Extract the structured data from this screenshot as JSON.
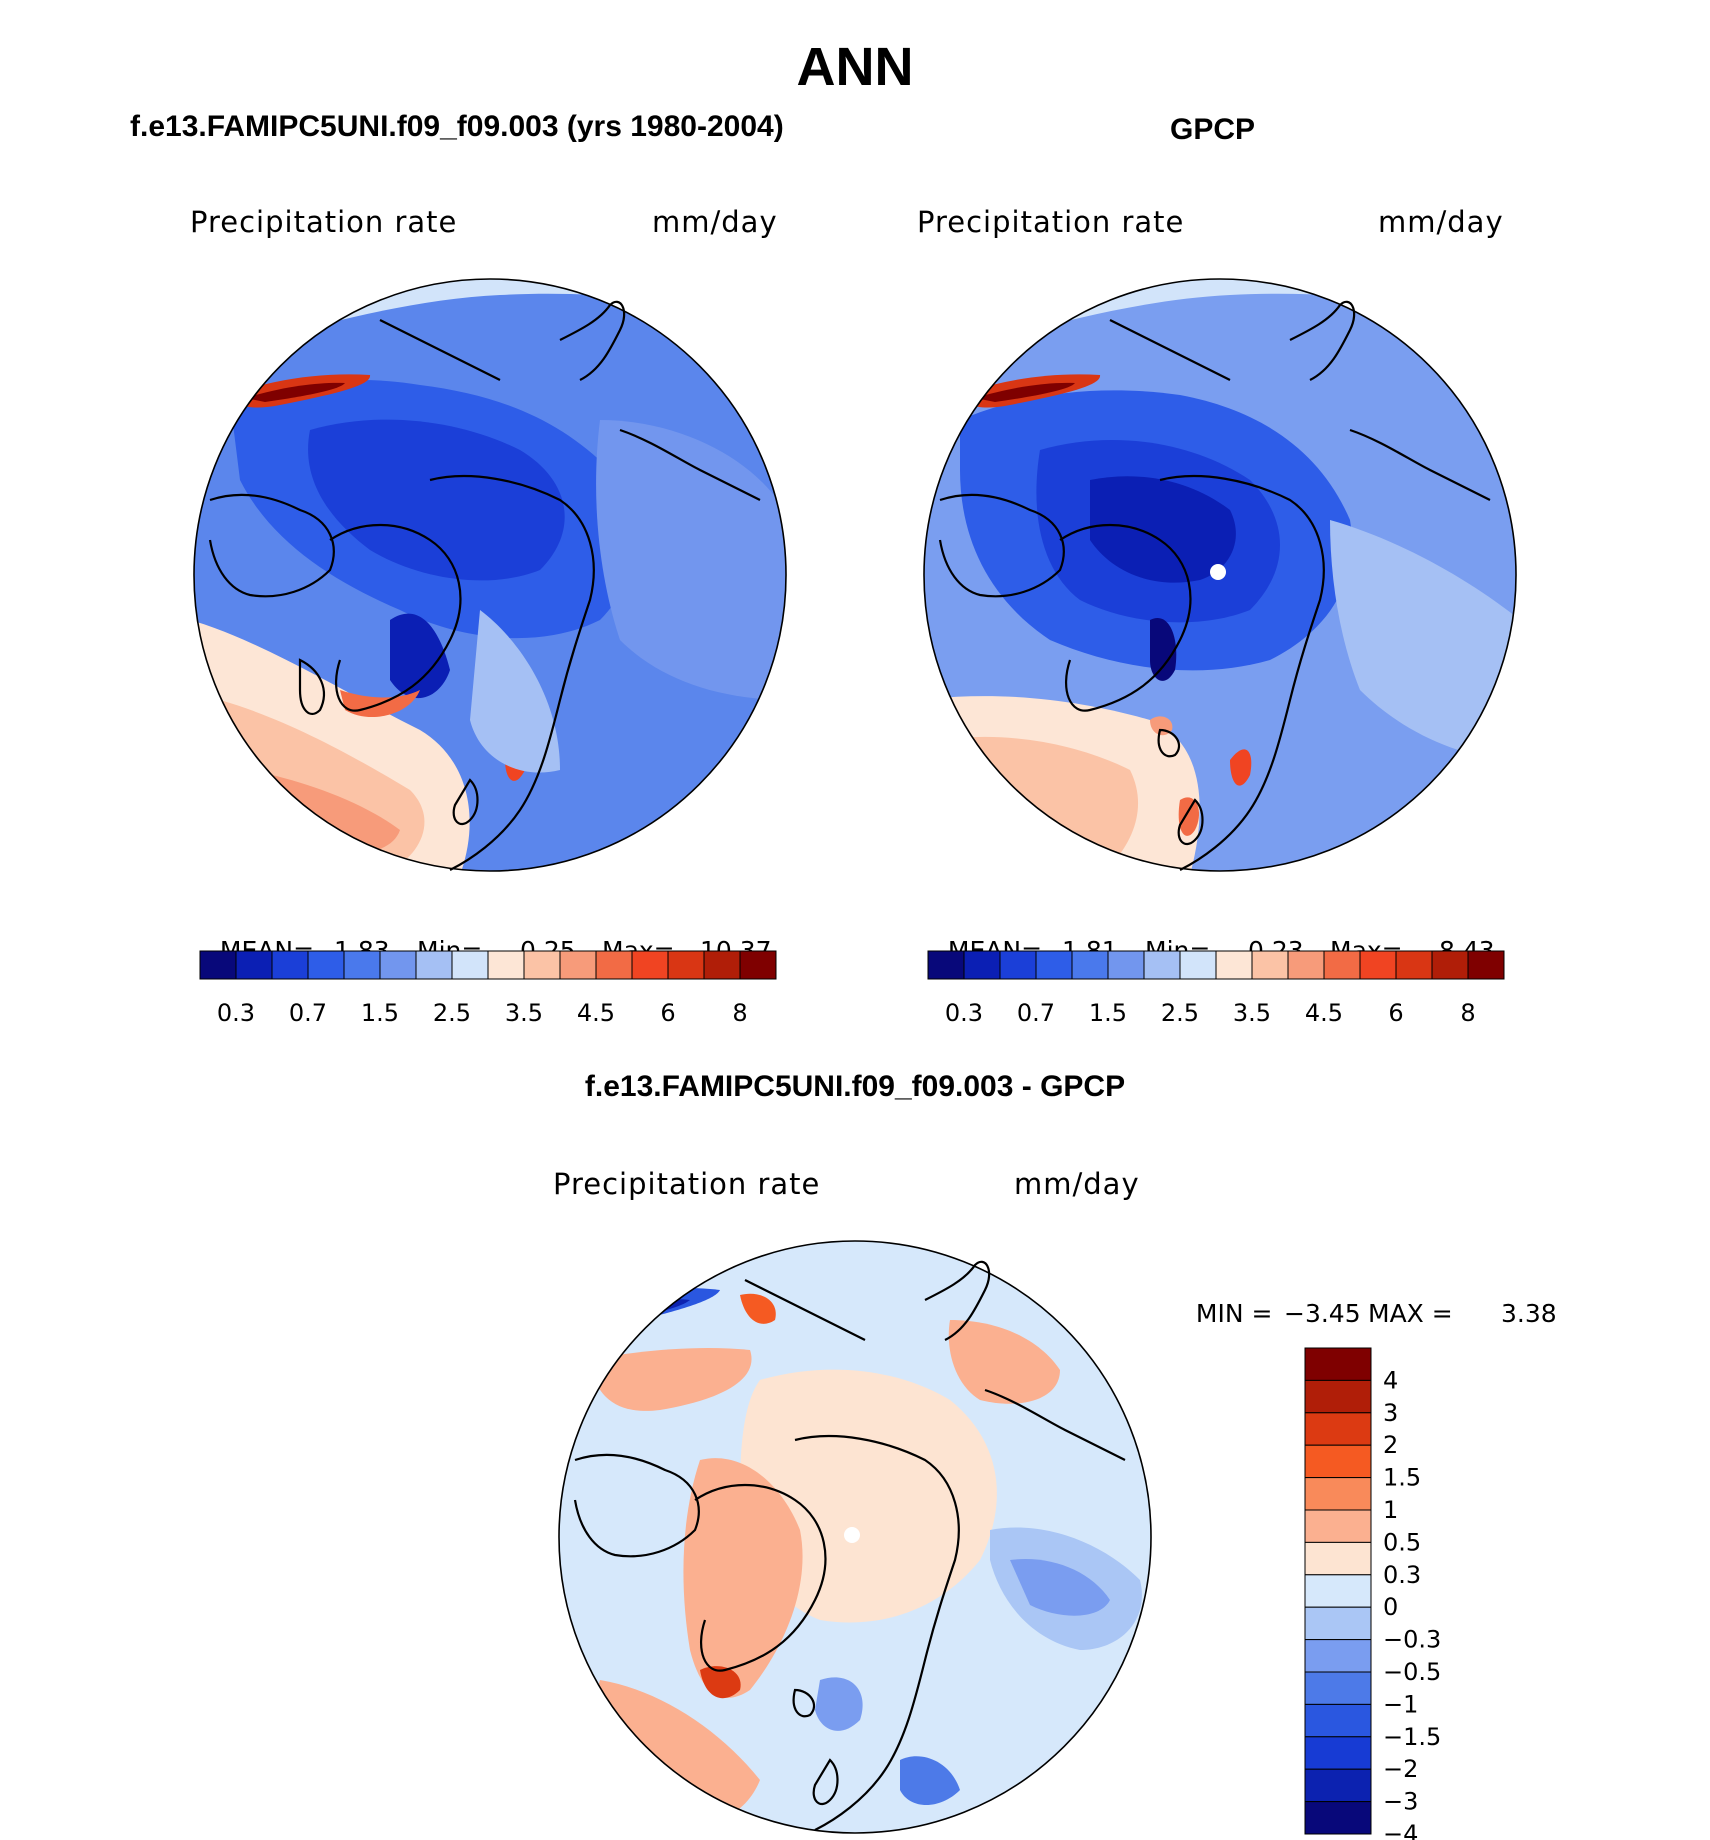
{
  "page_title": "ANN",
  "panels": [
    {
      "id": "model",
      "heading": "f.e13.FAMIPC5UNI.f09_f09.003 (yrs 1980-2004)",
      "variable": "Precipitation rate",
      "units": "mm/day",
      "stats": {
        "mean_label": "MEAN=",
        "mean": "1.83",
        "min_label": "Min=",
        "min": "0.25",
        "max_label": "Max=",
        "max": "10.37"
      }
    },
    {
      "id": "obs",
      "heading": "GPCP",
      "variable": "Precipitation rate",
      "units": "mm/day",
      "stats": {
        "mean_label": "MEAN=",
        "mean": "1.81",
        "min_label": "Min=",
        "min": "0.23",
        "max_label": "Max=",
        "max": "8.43"
      }
    },
    {
      "id": "diff",
      "heading": "f.e13.FAMIPC5UNI.f09_f09.003 - GPCP",
      "variable": "Precipitation rate",
      "units": "mm/day",
      "stats": {
        "min_label": "MIN =",
        "min": "−3.45",
        "max_label": "MAX =",
        "max": "3.38"
      }
    }
  ],
  "colorbars": {
    "field": {
      "tick_labels": [
        "0.3",
        "0.7",
        "1.5",
        "2.5",
        "3.5",
        "4.5",
        "6",
        "8"
      ],
      "colors": [
        "#08087a",
        "#0b1fb4",
        "#1b3fd8",
        "#2e5de8",
        "#4a79ec",
        "#7296ee",
        "#a5c0f4",
        "#d2e4fa",
        "#fde6d6",
        "#fbc3a6",
        "#f79b7a",
        "#f26b45",
        "#f04422",
        "#d93614",
        "#b01e08",
        "#7f0000"
      ]
    },
    "diff": {
      "tick_labels": [
        "4",
        "3",
        "2",
        "1.5",
        "1",
        "0.5",
        "0.3",
        "0",
        "−0.3",
        "−0.5",
        "−1",
        "−1.5",
        "−2",
        "−3",
        "−4"
      ],
      "colors_top_to_bottom": [
        "#7f0000",
        "#b01e08",
        "#dc3a12",
        "#f55a22",
        "#f98a5a",
        "#fbb090",
        "#fde4d2",
        "#d6e8fb",
        "#aac6f5",
        "#7a9df0",
        "#4d7ae8",
        "#2a57e0",
        "#173bd4",
        "#0c22b0",
        "#08087a"
      ]
    }
  }
}
